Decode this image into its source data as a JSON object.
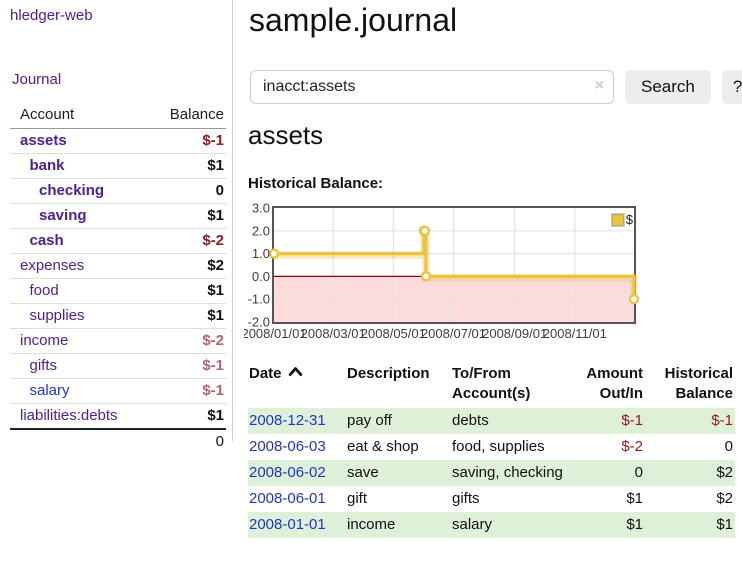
{
  "sidebar": {
    "brand": "hledger-web",
    "journal_link": "Journal",
    "table_header": {
      "account": "Account",
      "balance": "Balance"
    },
    "accounts": [
      {
        "name": "assets",
        "balance": "$-1",
        "indent": 1,
        "in_current_account": true,
        "value_style": "negative"
      },
      {
        "name": "bank",
        "balance": "$1",
        "indent": 2,
        "in_current_account": true,
        "value_style": "normal"
      },
      {
        "name": "checking",
        "balance": "0",
        "indent": 3,
        "in_current_account": true,
        "value_style": "normal"
      },
      {
        "name": "saving",
        "balance": "$1",
        "indent": 3,
        "in_current_account": true,
        "value_style": "normal"
      },
      {
        "name": "cash",
        "balance": "$-2",
        "indent": 2,
        "in_current_account": true,
        "value_style": "negative"
      },
      {
        "name": "expenses",
        "balance": "$2",
        "indent": 1,
        "in_current_account": false,
        "value_style": "normal"
      },
      {
        "name": "food",
        "balance": "$1",
        "indent": 2,
        "in_current_account": false,
        "value_style": "normal"
      },
      {
        "name": "supplies",
        "balance": "$1",
        "indent": 2,
        "in_current_account": false,
        "value_style": "normal"
      },
      {
        "name": "income",
        "balance": "$-2",
        "indent": 1,
        "in_current_account": false,
        "value_style": "soft-negative"
      },
      {
        "name": "gifts",
        "balance": "$-1",
        "indent": 2,
        "in_current_account": false,
        "value_style": "soft-negative"
      },
      {
        "name": "salary",
        "balance": "$-1",
        "indent": 2,
        "in_current_account": false,
        "value_style": "soft-negative",
        "link_style": "blue"
      },
      {
        "name": "liabilities:debts",
        "balance": "$1",
        "indent": 1,
        "in_current_account": false,
        "value_style": "normal"
      }
    ],
    "total": "0"
  },
  "header": {
    "title": "sample.journal"
  },
  "search": {
    "value": "inacct:assets",
    "clear_icon": "×",
    "search_button": "Search",
    "help_button": "?"
  },
  "account_view": {
    "heading": "assets",
    "chart_title": "Historical Balance:"
  },
  "chart_data": {
    "type": "line",
    "style": "step",
    "legend": "$",
    "legend_position": "top-right",
    "x_range": [
      "2008-01-01",
      "2008-12-31"
    ],
    "ylim": [
      -2,
      3
    ],
    "ytick_labels": [
      "3.0",
      "2.0",
      "1.0",
      "0.0",
      "-1.0",
      "-2.0"
    ],
    "xticks": [
      "2008-01-01",
      "2008-03-01",
      "2008-05-01",
      "2008-07-01",
      "2008-09-01",
      "2008-11-01"
    ],
    "xtick_labels": [
      "2008/01/01",
      "2008/03/01",
      "2008/05/01",
      "2008/07/01",
      "2008/09/01",
      "2008/11/01"
    ],
    "series": [
      {
        "name": "$",
        "color": "#edc240",
        "marker": "open-circle",
        "points": [
          [
            "2008-01-01",
            1
          ],
          [
            "2008-06-01",
            2
          ],
          [
            "2008-06-02",
            2
          ],
          [
            "2008-06-03",
            0
          ],
          [
            "2008-12-31",
            -1
          ]
        ]
      }
    ],
    "grid": true,
    "zero_line_color": "#8b0000",
    "negative_region_fill": "#fbdbdb"
  },
  "register": {
    "columns": {
      "date": "Date",
      "description": "Description",
      "accounts": "To/From Account(s)",
      "amount": "Amount Out/In",
      "balance": "Historical Balance"
    },
    "sort": {
      "column": "date",
      "direction": "ascending"
    },
    "rows": [
      {
        "date": "2008-12-31",
        "description": "pay off",
        "accounts": "debts",
        "amount": "$-1",
        "amount_style": "negative",
        "balance": "$-1",
        "balance_style": "negative"
      },
      {
        "date": "2008-06-03",
        "description": "eat & shop",
        "accounts": "food, supplies",
        "amount": "$-2",
        "amount_style": "negative",
        "balance": "0",
        "balance_style": "normal"
      },
      {
        "date": "2008-06-02",
        "description": "save",
        "accounts": "saving, checking",
        "amount": "0",
        "amount_style": "normal",
        "balance": "$2",
        "balance_style": "normal"
      },
      {
        "date": "2008-06-01",
        "description": "gift",
        "accounts": "gifts",
        "amount": "$1",
        "amount_style": "normal",
        "balance": "$2",
        "balance_style": "normal"
      },
      {
        "date": "2008-01-01",
        "description": "income",
        "accounts": "salary",
        "amount": "$1",
        "amount_style": "normal",
        "balance": "$1",
        "balance_style": "normal"
      }
    ]
  },
  "colors": {
    "link_purple": "#4e2096",
    "link_blue": "#2233cc",
    "negative_red": "#961a22",
    "soft_negative_red": "#b5646c",
    "row_stripe_green": "#dff0d8",
    "chart_line_gold": "#edc240",
    "chart_negative_pink": "#fbdbdb",
    "chart_zero_line": "#8b0000"
  }
}
